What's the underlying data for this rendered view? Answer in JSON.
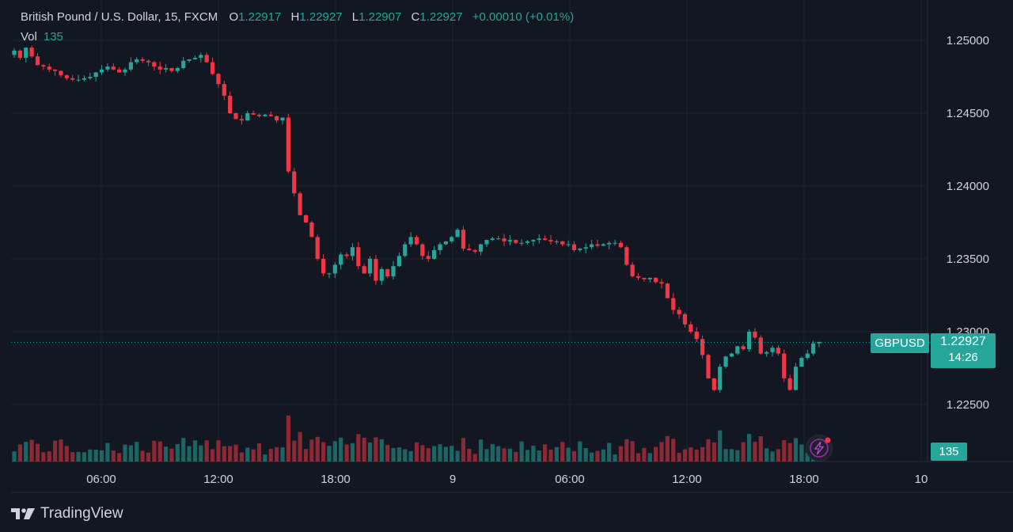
{
  "header": {
    "symbol_title": "British Pound / U.S. Dollar, 15, FXCM",
    "open_label": "O",
    "open_value": "1.22917",
    "high_label": "H",
    "high_value": "1.22927",
    "low_label": "L",
    "low_value": "1.22907",
    "close_label": "C",
    "close_value": "1.22927",
    "change": "+0.00010 (+0.01%)",
    "vol_label": "Vol",
    "vol_value": "135"
  },
  "price_tag": {
    "symbol": "GBPUSD",
    "price": "1.22927",
    "countdown": "14:26"
  },
  "volume_tag": "135",
  "brand": "TradingView",
  "colors": {
    "background": "#131722",
    "up": "#26a69a",
    "down": "#f23645",
    "text": "#d1d4dc",
    "grid": "#1f2330"
  },
  "chart_data": {
    "type": "candlestick",
    "y_axis": {
      "ticks": [
        "1.25000",
        "1.24500",
        "1.24000",
        "1.23500",
        "1.23000",
        "1.22500"
      ],
      "ylim": [
        1.2224,
        1.2512
      ]
    },
    "x_axis": {
      "ticks": [
        "06:00",
        "12:00",
        "18:00",
        "9",
        "06:00",
        "12:00",
        "18:00",
        "10"
      ]
    },
    "candle_interval_minutes": 15,
    "last_price": 1.22927,
    "closes": [
      1.2493,
      1.2488,
      1.2495,
      1.2489,
      1.2483,
      1.2482,
      1.248,
      1.2479,
      1.2476,
      1.2474,
      1.2473,
      1.2473,
      1.2474,
      1.2475,
      1.2478,
      1.248,
      1.2482,
      1.248,
      1.2478,
      1.248,
      1.2485,
      1.2487,
      1.2486,
      1.2485,
      1.2482,
      1.248,
      1.2481,
      1.2479,
      1.2481,
      1.2486,
      1.2487,
      1.2488,
      1.249,
      1.2485,
      1.2477,
      1.247,
      1.2462,
      1.245,
      1.2446,
      1.2445,
      1.245,
      1.2449,
      1.2448,
      1.2449,
      1.2448,
      1.2445,
      1.2447,
      1.241,
      1.2395,
      1.238,
      1.2375,
      1.2365,
      1.235,
      1.234,
      1.234,
      1.2346,
      1.2353,
      1.2352,
      1.2358,
      1.2345,
      1.234,
      1.235,
      1.2335,
      1.2343,
      1.2338,
      1.2345,
      1.2352,
      1.236,
      1.2365,
      1.236,
      1.2352,
      1.235,
      1.2356,
      1.236,
      1.2362,
      1.2365,
      1.237,
      1.2357,
      1.2356,
      1.2355,
      1.236,
      1.2363,
      1.2364,
      1.2364,
      1.2362,
      1.2363,
      1.2361,
      1.2361,
      1.2362,
      1.2363,
      1.2364,
      1.2363,
      1.2362,
      1.2362,
      1.236,
      1.236,
      1.2356,
      1.2357,
      1.2358,
      1.236,
      1.2359,
      1.236,
      1.2361,
      1.2361,
      1.2358,
      1.2346,
      1.2338,
      1.2337,
      1.2336,
      1.2337,
      1.2334,
      1.2333,
      1.2323,
      1.2315,
      1.2312,
      1.2305,
      1.23,
      1.2295,
      1.2284,
      1.2268,
      1.226,
      1.2276,
      1.2283,
      1.2285,
      1.229,
      1.2288,
      1.23,
      1.2296,
      1.2285,
      1.2286,
      1.2289,
      1.2285,
      1.2268,
      1.226,
      1.2276,
      1.2282,
      1.2285,
      1.2292,
      1.2293
    ]
  }
}
